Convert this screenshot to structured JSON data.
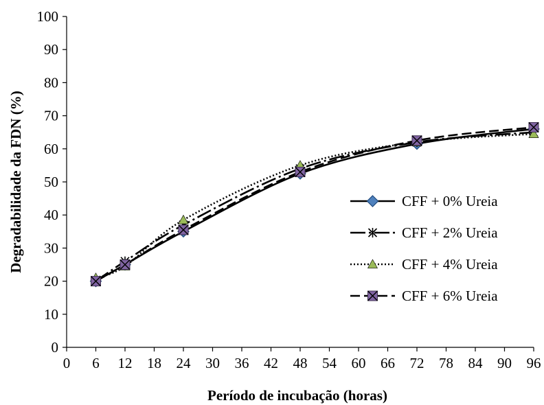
{
  "chart_data": {
    "type": "line",
    "xlabel": "Período de incubação (horas)",
    "ylabel": "Degradabilidade da FDN (%)",
    "xlim": [
      0,
      96
    ],
    "ylim": [
      0,
      100
    ],
    "xticks": [
      0,
      6,
      12,
      18,
      24,
      30,
      36,
      42,
      48,
      54,
      60,
      66,
      72,
      78,
      84,
      90,
      96
    ],
    "yticks": [
      0,
      10,
      20,
      30,
      40,
      50,
      60,
      70,
      80,
      90,
      100
    ],
    "grid": false,
    "legend_position": "right",
    "x": [
      6,
      12,
      24,
      48,
      72,
      96
    ],
    "series": [
      {
        "name": "CFF + 0% Ureia",
        "values": [
          20,
          25,
          35,
          52.5,
          61.5,
          66
        ],
        "line_style": "solid",
        "marker": "diamond",
        "marker_color": "#4F81BD",
        "line_color": "#000000"
      },
      {
        "name": "CFF + 2% Ureia",
        "values": [
          20,
          26,
          37,
          54,
          62,
          65
        ],
        "line_style": "long-dash-dot",
        "marker": "asterisk",
        "marker_color": "#000000",
        "line_color": "#000000"
      },
      {
        "name": "CFF + 4% Ureia",
        "values": [
          21,
          24.5,
          38.5,
          55,
          62,
          64.5
        ],
        "line_style": "dotted",
        "marker": "triangle",
        "marker_color": "#9BBB59",
        "line_color": "#000000"
      },
      {
        "name": "CFF + 6% Ureia",
        "values": [
          20,
          25,
          35.5,
          53,
          62.5,
          66.5
        ],
        "line_style": "dashed",
        "marker": "x-square",
        "marker_color": "#8064A2",
        "line_color": "#000000"
      }
    ]
  }
}
